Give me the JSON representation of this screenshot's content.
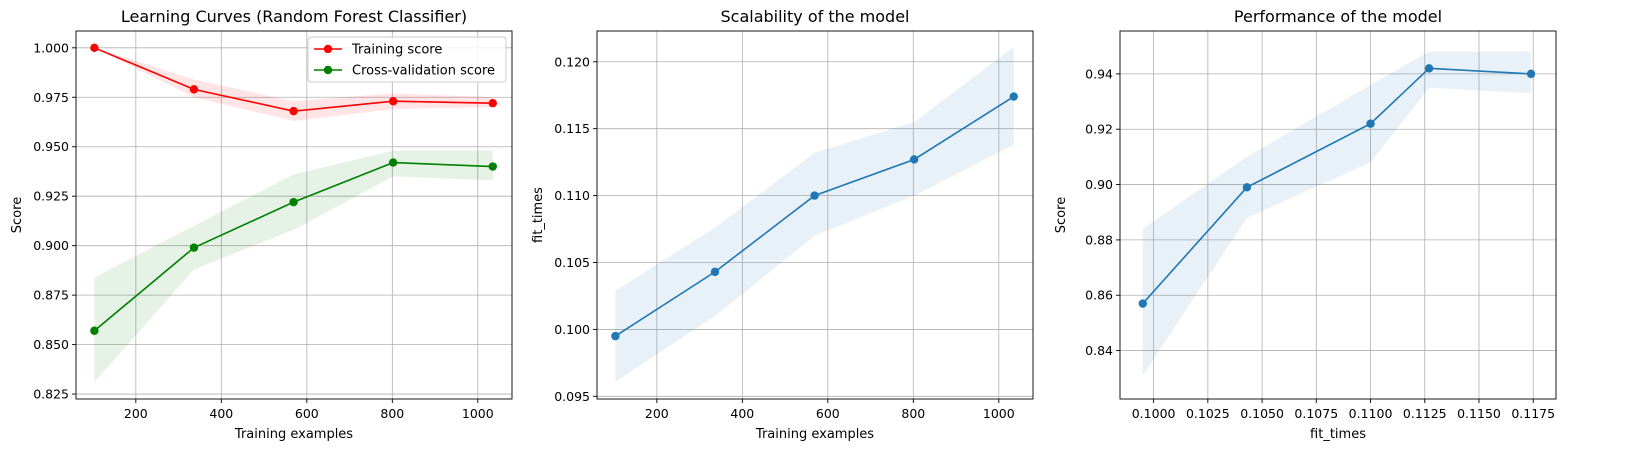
{
  "chart_data": [
    {
      "type": "line",
      "title": "Learning Curves (Random Forest Classifier)",
      "xlabel": "Training examples",
      "ylabel": "Score",
      "xlim": [
        60,
        1080
      ],
      "ylim": [
        0.8225,
        1.0085
      ],
      "xticks": [
        200,
        400,
        600,
        800,
        1000
      ],
      "yticks": [
        0.825,
        0.85,
        0.875,
        0.9,
        0.925,
        0.95,
        0.975,
        1.0
      ],
      "ytick_decimals": 3,
      "xtick_decimals": 0,
      "grid": true,
      "legend": "top-right",
      "x": [
        103,
        336,
        569,
        802,
        1035
      ],
      "series": [
        {
          "name": "Training score",
          "color": "#ff0000",
          "values": [
            1.0,
            0.979,
            0.968,
            0.973,
            0.972
          ],
          "band_lower": [
            1.0,
            0.975,
            0.963,
            0.969,
            0.97
          ],
          "band_upper": [
            1.0,
            0.984,
            0.973,
            0.977,
            0.975
          ]
        },
        {
          "name": "Cross-validation score",
          "color": "#008000",
          "values": [
            0.857,
            0.899,
            0.922,
            0.942,
            0.94
          ],
          "band_lower": [
            0.831,
            0.888,
            0.908,
            0.935,
            0.933
          ],
          "band_upper": [
            0.884,
            0.91,
            0.936,
            0.948,
            0.948
          ]
        }
      ]
    },
    {
      "type": "line",
      "title": "Scalability of the model",
      "xlabel": "Training examples",
      "ylabel": "fit_times",
      "xlim": [
        60,
        1080
      ],
      "ylim": [
        0.0948,
        0.1223
      ],
      "xticks": [
        200,
        400,
        600,
        800,
        1000
      ],
      "yticks": [
        0.095,
        0.1,
        0.105,
        0.11,
        0.115,
        0.12
      ],
      "ytick_decimals": 3,
      "xtick_decimals": 0,
      "grid": true,
      "x": [
        103,
        336,
        569,
        802,
        1035
      ],
      "series": [
        {
          "color": "#1f77b4",
          "values": [
            0.0995,
            0.1043,
            0.11,
            0.1127,
            0.1174
          ],
          "band_lower": [
            0.0961,
            0.101,
            0.107,
            0.11,
            0.1138
          ],
          "band_upper": [
            0.1029,
            0.1076,
            0.1132,
            0.1155,
            0.1211
          ]
        }
      ]
    },
    {
      "type": "line",
      "title": "Performance of the model",
      "xlabel": "fit_times",
      "ylabel": "Score",
      "xlim": [
        0.09845,
        0.11855
      ],
      "ylim": [
        0.8225,
        0.9555
      ],
      "xticks": [
        0.1,
        0.1025,
        0.105,
        0.1075,
        0.11,
        0.1125,
        0.115,
        0.1175
      ],
      "yticks": [
        0.84,
        0.86,
        0.88,
        0.9,
        0.92,
        0.94
      ],
      "ytick_decimals": 2,
      "xtick_decimals": 4,
      "grid": true,
      "x": [
        0.0995,
        0.1043,
        0.11,
        0.1127,
        0.1174
      ],
      "series": [
        {
          "color": "#1f77b4",
          "values": [
            0.857,
            0.899,
            0.922,
            0.942,
            0.94
          ],
          "band_lower": [
            0.831,
            0.888,
            0.908,
            0.935,
            0.933
          ],
          "band_upper": [
            0.884,
            0.91,
            0.936,
            0.948,
            0.948
          ]
        }
      ]
    }
  ]
}
